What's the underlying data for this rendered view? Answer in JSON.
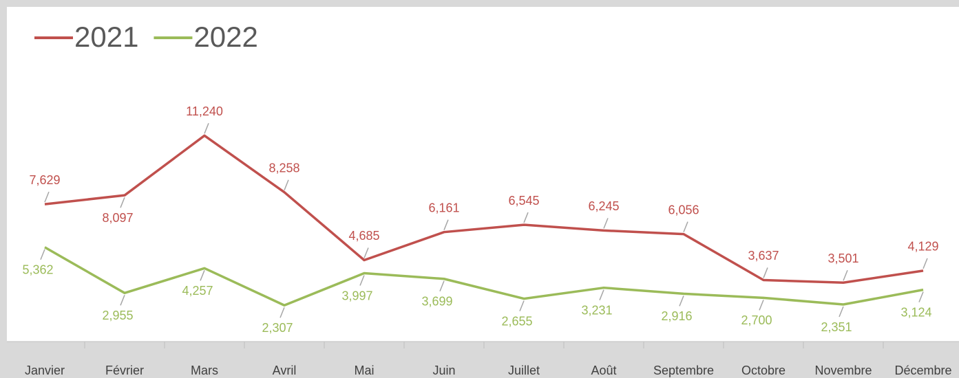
{
  "chart_data": {
    "type": "line",
    "categories": [
      "Janvier",
      "Février",
      "Mars",
      "Avril",
      "Mai",
      "Juin",
      "Juillet",
      "Août",
      "Septembre",
      "Octobre",
      "Novembre",
      "Décembre"
    ],
    "series": [
      {
        "name": "2021",
        "color": "#c0504d",
        "values": [
          7629,
          8097,
          11240,
          8258,
          4685,
          6161,
          6545,
          6245,
          6056,
          3637,
          3501,
          4129
        ],
        "value_labels": [
          "7,629",
          "8,097",
          "11,240",
          "8,258",
          "4,685",
          "6,161",
          "6,545",
          "6,245",
          "6,056",
          "3,637",
          "3,501",
          "4,129"
        ]
      },
      {
        "name": "2022",
        "color": "#9bbb59",
        "values": [
          5362,
          2955,
          4257,
          2307,
          3997,
          3699,
          2655,
          3231,
          2916,
          2700,
          2351,
          3124
        ],
        "value_labels": [
          "5,362",
          "2,955",
          "4,257",
          "2,307",
          "3,997",
          "3,699",
          "2,655",
          "3,231",
          "2,916",
          "2,700",
          "2,351",
          "3,124"
        ]
      }
    ],
    "ylim": [
      0,
      14000
    ],
    "legend": "top-left"
  }
}
